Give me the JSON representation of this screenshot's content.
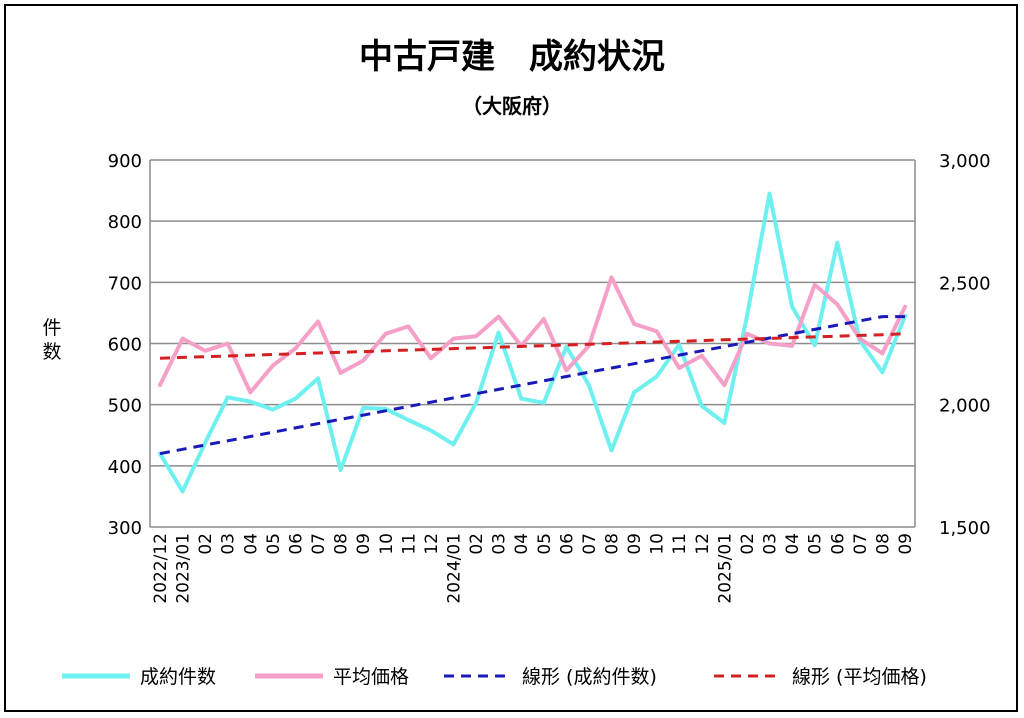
{
  "chart_data": {
    "type": "line",
    "title": "中古戸建　成約状況",
    "subtitle": "（大阪府）",
    "ylabel": "件数",
    "ylim": [
      300,
      900
    ],
    "y_ticks": [
      "300",
      "400",
      "500",
      "600",
      "700",
      "800",
      "900"
    ],
    "y2lim": [
      1500,
      3000
    ],
    "y2_ticks": [
      "1,500",
      "2,000",
      "2,500",
      "3,000"
    ],
    "x_labels": [
      "2022/12",
      "2023/01",
      "02",
      "03",
      "04",
      "05",
      "06",
      "07",
      "08",
      "09",
      "10",
      "11",
      "12",
      "2024/01",
      "02",
      "03",
      "04",
      "05",
      "06",
      "07",
      "08",
      "09",
      "10",
      "11",
      "12",
      "2025/01",
      "02",
      "03",
      "04",
      "05",
      "06",
      "07",
      "08",
      "09"
    ],
    "grid": true,
    "legend_position": "bottom",
    "series": [
      {
        "name": "成約件数",
        "axis": "left",
        "color": "#6ff0f0",
        "style": "solid",
        "values": [
          420,
          358,
          438,
          512,
          505,
          492,
          510,
          543,
          393,
          495,
          493,
          475,
          458,
          435,
          503,
          618,
          510,
          503,
          595,
          532,
          425,
          520,
          546,
          598,
          498,
          470,
          645,
          845,
          660,
          597,
          765,
          605,
          553,
          645
        ]
      },
      {
        "name": "平均価格",
        "axis": "right",
        "color": "#f4a0c8",
        "style": "solid",
        "values": [
          2080,
          2270,
          2220,
          2250,
          2050,
          2160,
          2230,
          2340,
          2130,
          2180,
          2290,
          2320,
          2190,
          2270,
          2280,
          2360,
          2240,
          2350,
          2140,
          2240,
          2520,
          2330,
          2300,
          2150,
          2200,
          2080,
          2290,
          2250,
          2240,
          2490,
          2410,
          2270,
          2210,
          2400
        ]
      },
      {
        "name": "線形 (成約件数)",
        "axis": "left",
        "color": "#1a1ab8",
        "style": "dashed",
        "values": [
          420,
          427,
          434,
          441,
          448,
          455,
          462,
          469,
          476,
          483,
          490,
          497,
          504,
          511,
          518,
          525,
          532,
          539,
          546,
          553,
          560,
          567,
          574,
          581,
          588,
          595,
          602,
          609,
          616,
          623,
          630,
          637,
          644,
          644
        ]
      },
      {
        "name": "線形 (平均価格)",
        "axis": "right",
        "color": "#d42020",
        "style": "dashed",
        "values": [
          2190,
          2193,
          2196,
          2199,
          2202,
          2205,
          2208,
          2211,
          2214,
          2217,
          2220,
          2223,
          2226,
          2229,
          2232,
          2235,
          2238,
          2241,
          2244,
          2247,
          2250,
          2253,
          2256,
          2259,
          2262,
          2265,
          2268,
          2271,
          2274,
          2277,
          2280,
          2283,
          2286,
          2290
        ]
      }
    ]
  }
}
